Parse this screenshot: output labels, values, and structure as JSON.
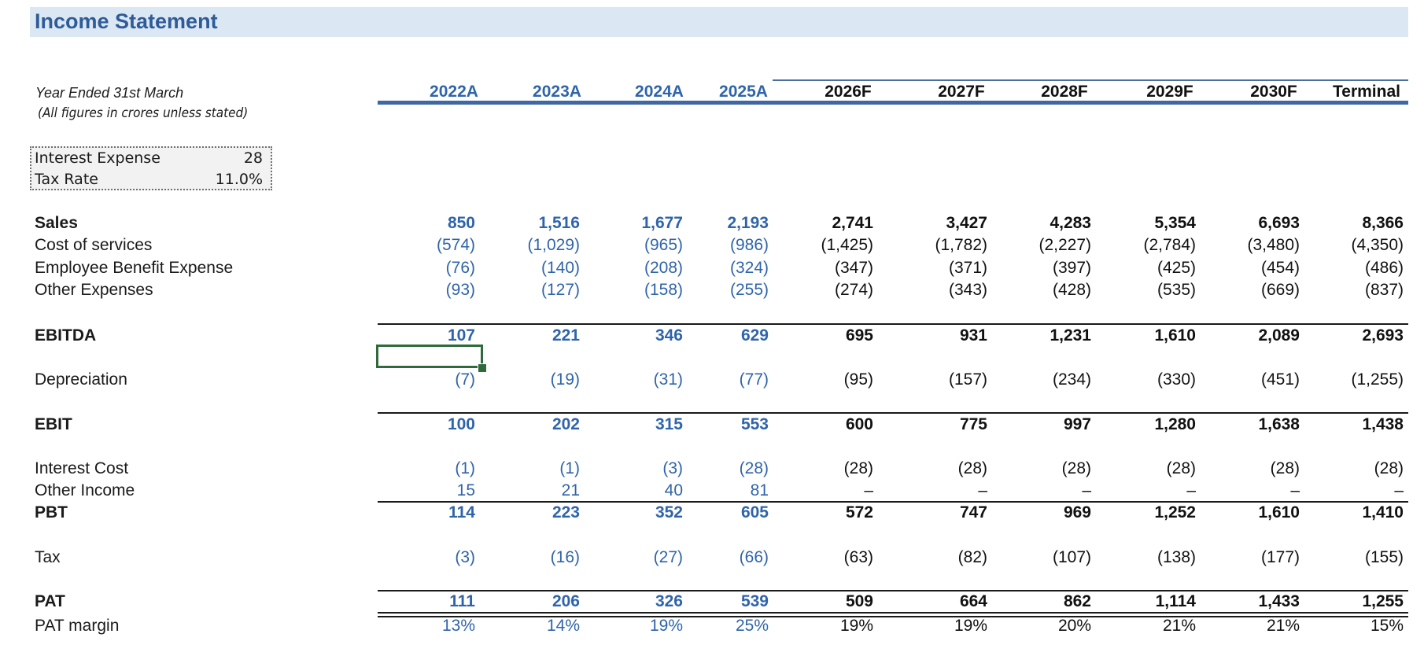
{
  "sheet": {
    "title": "Income Statement",
    "year_label": "Year Ended 31st March",
    "note": "(All figures in crores unless stated)"
  },
  "columns": [
    {
      "label": "2022A",
      "kind": "actual"
    },
    {
      "label": "2023A",
      "kind": "actual"
    },
    {
      "label": "2024A",
      "kind": "actual"
    },
    {
      "label": "2025A",
      "kind": "actual"
    },
    {
      "label": "2026F",
      "kind": "forecast"
    },
    {
      "label": "2027F",
      "kind": "forecast"
    },
    {
      "label": "2028F",
      "kind": "forecast"
    },
    {
      "label": "2029F",
      "kind": "forecast"
    },
    {
      "label": "2030F",
      "kind": "forecast"
    },
    {
      "label": "Terminal",
      "kind": "forecast"
    }
  ],
  "assumptions": [
    {
      "label": "Interest Expense",
      "value": "28"
    },
    {
      "label": "Tax Rate",
      "value": "11.0%"
    }
  ],
  "rows": [
    {
      "key": "sales",
      "label": "Sales",
      "bold": true,
      "values": [
        "850",
        "1,516",
        "1,677",
        "2,193",
        "2,741",
        "3,427",
        "4,283",
        "5,354",
        "6,693",
        "8,366"
      ]
    },
    {
      "key": "cost_of_services",
      "label": "Cost of services",
      "bold": false,
      "values": [
        "(574)",
        "(1,029)",
        "(965)",
        "(986)",
        "(1,425)",
        "(1,782)",
        "(2,227)",
        "(2,784)",
        "(3,480)",
        "(4,350)"
      ]
    },
    {
      "key": "employee_benefit",
      "label": "Employee Benefit Expense",
      "bold": false,
      "values": [
        "(76)",
        "(140)",
        "(208)",
        "(324)",
        "(347)",
        "(371)",
        "(397)",
        "(425)",
        "(454)",
        "(486)"
      ]
    },
    {
      "key": "other_expenses",
      "label": "Other Expenses",
      "bold": false,
      "values": [
        "(93)",
        "(127)",
        "(158)",
        "(255)",
        "(274)",
        "(343)",
        "(428)",
        "(535)",
        "(669)",
        "(837)"
      ]
    },
    {
      "key": "ebitda",
      "label": "EBITDA",
      "bold": true,
      "values": [
        "107",
        "221",
        "346",
        "629",
        "695",
        "931",
        "1,231",
        "1,610",
        "2,089",
        "2,693"
      ]
    },
    {
      "key": "depreciation",
      "label": "Depreciation",
      "bold": false,
      "values": [
        "(7)",
        "(19)",
        "(31)",
        "(77)",
        "(95)",
        "(157)",
        "(234)",
        "(330)",
        "(451)",
        "(1,255)"
      ]
    },
    {
      "key": "ebit",
      "label": "EBIT",
      "bold": true,
      "values": [
        "100",
        "202",
        "315",
        "553",
        "600",
        "775",
        "997",
        "1,280",
        "1,638",
        "1,438"
      ]
    },
    {
      "key": "interest_cost",
      "label": "Interest Cost",
      "bold": false,
      "values": [
        "(1)",
        "(1)",
        "(3)",
        "(28)",
        "(28)",
        "(28)",
        "(28)",
        "(28)",
        "(28)",
        "(28)"
      ]
    },
    {
      "key": "other_income",
      "label": "Other Income",
      "bold": false,
      "values": [
        "15",
        "21",
        "40",
        "81",
        "–",
        "–",
        "–",
        "–",
        "–",
        "–"
      ]
    },
    {
      "key": "pbt",
      "label": "PBT",
      "bold": true,
      "values": [
        "114",
        "223",
        "352",
        "605",
        "572",
        "747",
        "969",
        "1,252",
        "1,610",
        "1,410"
      ]
    },
    {
      "key": "tax",
      "label": "Tax",
      "bold": false,
      "values": [
        "(3)",
        "(16)",
        "(27)",
        "(66)",
        "(63)",
        "(82)",
        "(107)",
        "(138)",
        "(177)",
        "(155)"
      ]
    },
    {
      "key": "pat",
      "label": "PAT",
      "bold": true,
      "values": [
        "111",
        "206",
        "326",
        "539",
        "509",
        "664",
        "862",
        "1,114",
        "1,433",
        "1,255"
      ]
    },
    {
      "key": "pat_margin",
      "label": "PAT margin",
      "bold": false,
      "values": [
        "13%",
        "14%",
        "19%",
        "25%",
        "19%",
        "19%",
        "20%",
        "21%",
        "21%",
        "15%"
      ]
    }
  ],
  "colors": {
    "actual_text": "#2f64aa",
    "forecast_text": "#111111",
    "title_band": "#dce7f4",
    "title_text": "#2f5c97",
    "selection": "#2f6a3b"
  }
}
